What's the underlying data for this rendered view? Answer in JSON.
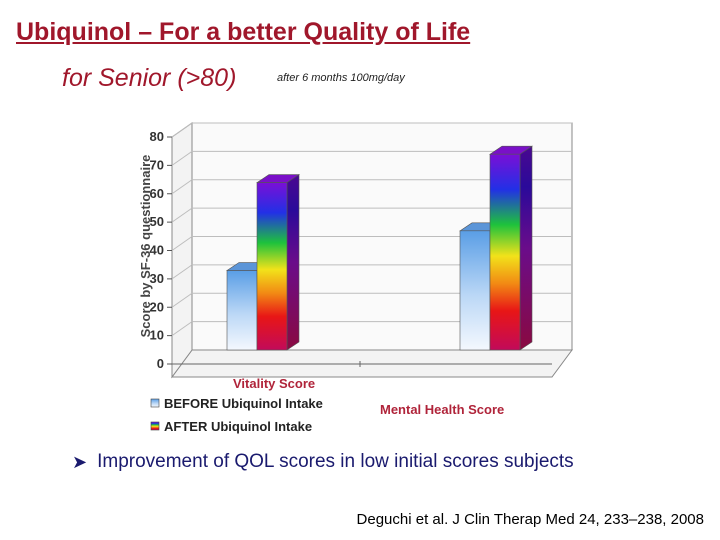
{
  "slide": {
    "title": "Ubiquinol – For a better Quality of Life",
    "subtitle": "for Senior (>80)",
    "note": "after  6 months 100mg/day",
    "bullet": "Improvement of QOL scores in low initial scores subjects",
    "bullet_icon": "arrow-bullet-icon",
    "citation": "Deguchi et al. J Clin Therap Med 24, 233–238, 2008",
    "title_color": "#a0172b",
    "category_label_color": "#b0243a"
  },
  "chart_data": {
    "type": "bar",
    "categories": [
      "Vitality Score",
      "Mental Health Score"
    ],
    "series": [
      {
        "name": "BEFORE Ubiquinol Intake",
        "values": [
          28,
          42
        ],
        "color": "#4a90d9"
      },
      {
        "name": "AFTER Ubiquinol Intake",
        "values": [
          59,
          69
        ],
        "color": "rainbow"
      }
    ],
    "ylabel": "Score by SF-36 questionnaire",
    "xlabel": "",
    "ylim": [
      0,
      80
    ],
    "yticks": [
      "0",
      "10",
      "20",
      "30",
      "40",
      "50",
      "60",
      "70",
      "80"
    ],
    "grid": true,
    "three_d": true,
    "legend_position": "bottom-left"
  }
}
